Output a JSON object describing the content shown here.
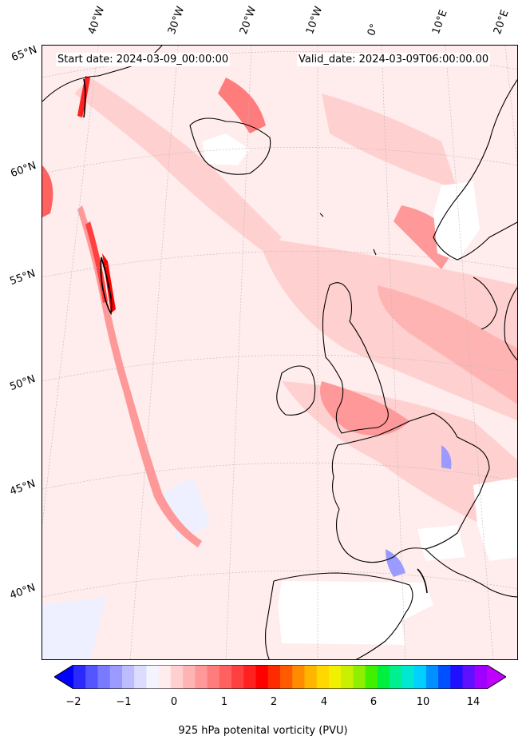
{
  "header": {
    "start_date": "Start date: 2024-03-09_00:00:00",
    "valid_date": "Valid_date: 2024-03-09T06:00:00.00"
  },
  "longitude_labels": [
    "40°W",
    "30°W",
    "20°W",
    "10°W",
    "0°",
    "10°E",
    "20°E"
  ],
  "latitude_labels": [
    "65°N",
    "60°N",
    "55°N",
    "50°N",
    "45°N",
    "40°N"
  ],
  "colorbar": {
    "tick_labels": [
      "−2",
      "−1",
      "0",
      "1",
      "2",
      "4",
      "6",
      "10",
      "14"
    ],
    "label": "925 hPa potenital vorticity (PVU)",
    "colors": [
      "#0000ff",
      "#2a2aff",
      "#5555ff",
      "#7a7aff",
      "#9a9aff",
      "#bcbcff",
      "#dcdcff",
      "#f4f4ff",
      "#ffecec",
      "#ffd0d0",
      "#ffb4b4",
      "#ff9898",
      "#ff7c7c",
      "#ff6060",
      "#ff4040",
      "#ff2020",
      "#ff0000",
      "#ff2a00",
      "#ff5a00",
      "#ff8c00",
      "#ffb400",
      "#ffd800",
      "#f0f000",
      "#c8f000",
      "#8ef000",
      "#40f000",
      "#00f040",
      "#00f090",
      "#00e8d0",
      "#00d0ff",
      "#0090ff",
      "#0050ff",
      "#2010ff",
      "#6010ff",
      "#a000ff",
      "#c000ff"
    ]
  }
}
